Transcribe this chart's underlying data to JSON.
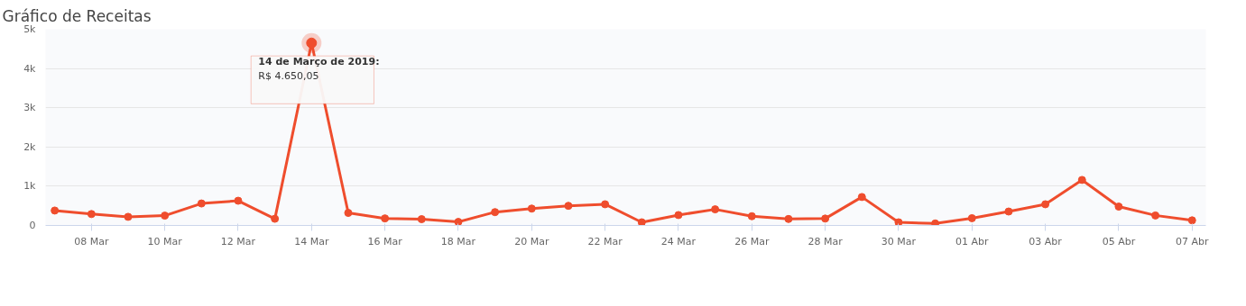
{
  "chart_data": {
    "type": "line",
    "title": "Gráfico de Receitas",
    "x": [
      "2019-03-07",
      "2019-03-08",
      "2019-03-09",
      "2019-03-10",
      "2019-03-11",
      "2019-03-12",
      "2019-03-13",
      "2019-03-14",
      "2019-03-15",
      "2019-03-16",
      "2019-03-17",
      "2019-03-18",
      "2019-03-19",
      "2019-03-20",
      "2019-03-21",
      "2019-03-22",
      "2019-03-23",
      "2019-03-24",
      "2019-03-25",
      "2019-03-26",
      "2019-03-27",
      "2019-03-28",
      "2019-03-29",
      "2019-03-30",
      "2019-03-31",
      "2019-04-01",
      "2019-04-02",
      "2019-04-03",
      "2019-04-04",
      "2019-04-05",
      "2019-04-06",
      "2019-04-07"
    ],
    "series": [
      {
        "color": "#ef4d2d",
        "values": [
          380,
          290,
          220,
          250,
          560,
          630,
          170,
          4650.05,
          320,
          180,
          160,
          90,
          340,
          430,
          500,
          540,
          80,
          265,
          410,
          235,
          165,
          175,
          725,
          80,
          50,
          185,
          355,
          540,
          1160,
          480,
          255,
          130
        ]
      }
    ],
    "xlim": [
      "2019-03-06T18:00",
      "2019-04-07T09:00"
    ],
    "xticks": [
      {
        "value": "2019-03-08",
        "label": "08 Mar"
      },
      {
        "value": "2019-03-10",
        "label": "10 Mar"
      },
      {
        "value": "2019-03-12",
        "label": "12 Mar"
      },
      {
        "value": "2019-03-14",
        "label": "14 Mar"
      },
      {
        "value": "2019-03-16",
        "label": "16 Mar"
      },
      {
        "value": "2019-03-18",
        "label": "18 Mar"
      },
      {
        "value": "2019-03-20",
        "label": "20 Mar"
      },
      {
        "value": "2019-03-22",
        "label": "22 Mar"
      },
      {
        "value": "2019-03-24",
        "label": "24 Mar"
      },
      {
        "value": "2019-03-26",
        "label": "26 Mar"
      },
      {
        "value": "2019-03-28",
        "label": "28 Mar"
      },
      {
        "value": "2019-03-30",
        "label": "30 Mar"
      },
      {
        "value": "2019-04-01",
        "label": "01 Abr"
      },
      {
        "value": "2019-04-03",
        "label": "03 Abr"
      },
      {
        "value": "2019-04-05",
        "label": "05 Abr"
      },
      {
        "value": "2019-04-07",
        "label": "07 Abr"
      }
    ],
    "ylim": [
      0,
      5000
    ],
    "yticks": [
      0,
      {
        "value": 1000,
        "label": "1k"
      },
      {
        "value": 2000,
        "label": "2k"
      },
      {
        "value": 3000,
        "label": "3k"
      },
      {
        "value": 4000,
        "label": "4k"
      },
      {
        "value": 5000,
        "label": "5k"
      }
    ],
    "grid": "y",
    "marker": "circle",
    "line_style": "solid",
    "annotations": [
      {
        "text": "14 de Março de 2019:\nR$ 4.650,05",
        "x": "2019-03-14",
        "y": 4650.05
      }
    ]
  }
}
